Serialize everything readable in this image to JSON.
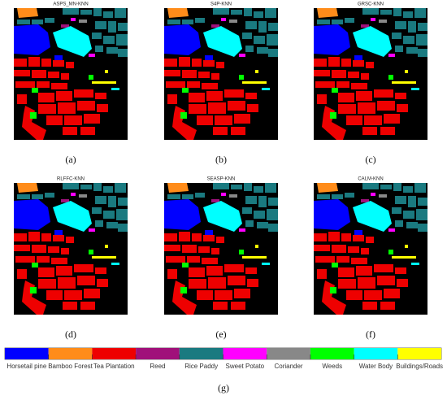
{
  "panels": [
    {
      "title": "ASPS_MN-KNN",
      "caption": "(a)"
    },
    {
      "title": "S4P-KNN",
      "caption": "(b)"
    },
    {
      "title": "GRSC-KNN",
      "caption": "(c)"
    },
    {
      "title": "RLFFC-KNN",
      "caption": "(d)"
    },
    {
      "title": "SEASP-KNN",
      "caption": "(e)"
    },
    {
      "title": "CALM-KNN",
      "caption": "(f)"
    }
  ],
  "legend": {
    "classes": [
      {
        "name": "Horsetail pine",
        "color": "#0000ff"
      },
      {
        "name": "Bamboo Forest",
        "color": "#ff8c1a"
      },
      {
        "name": "Tea Plantation",
        "color": "#ee0000"
      },
      {
        "name": "Reed",
        "color": "#a0107a"
      },
      {
        "name": "Rice Paddy",
        "color": "#1a7a80"
      },
      {
        "name": "Sweet Potato",
        "color": "#ff00ff"
      },
      {
        "name": "Coriander",
        "color": "#888888"
      },
      {
        "name": "Weeds",
        "color": "#00ff00"
      },
      {
        "name": "Water Body",
        "color": "#00ffff"
      },
      {
        "name": "Buildings/Roads",
        "color": "#ffff00"
      }
    ],
    "caption": "(g)"
  }
}
